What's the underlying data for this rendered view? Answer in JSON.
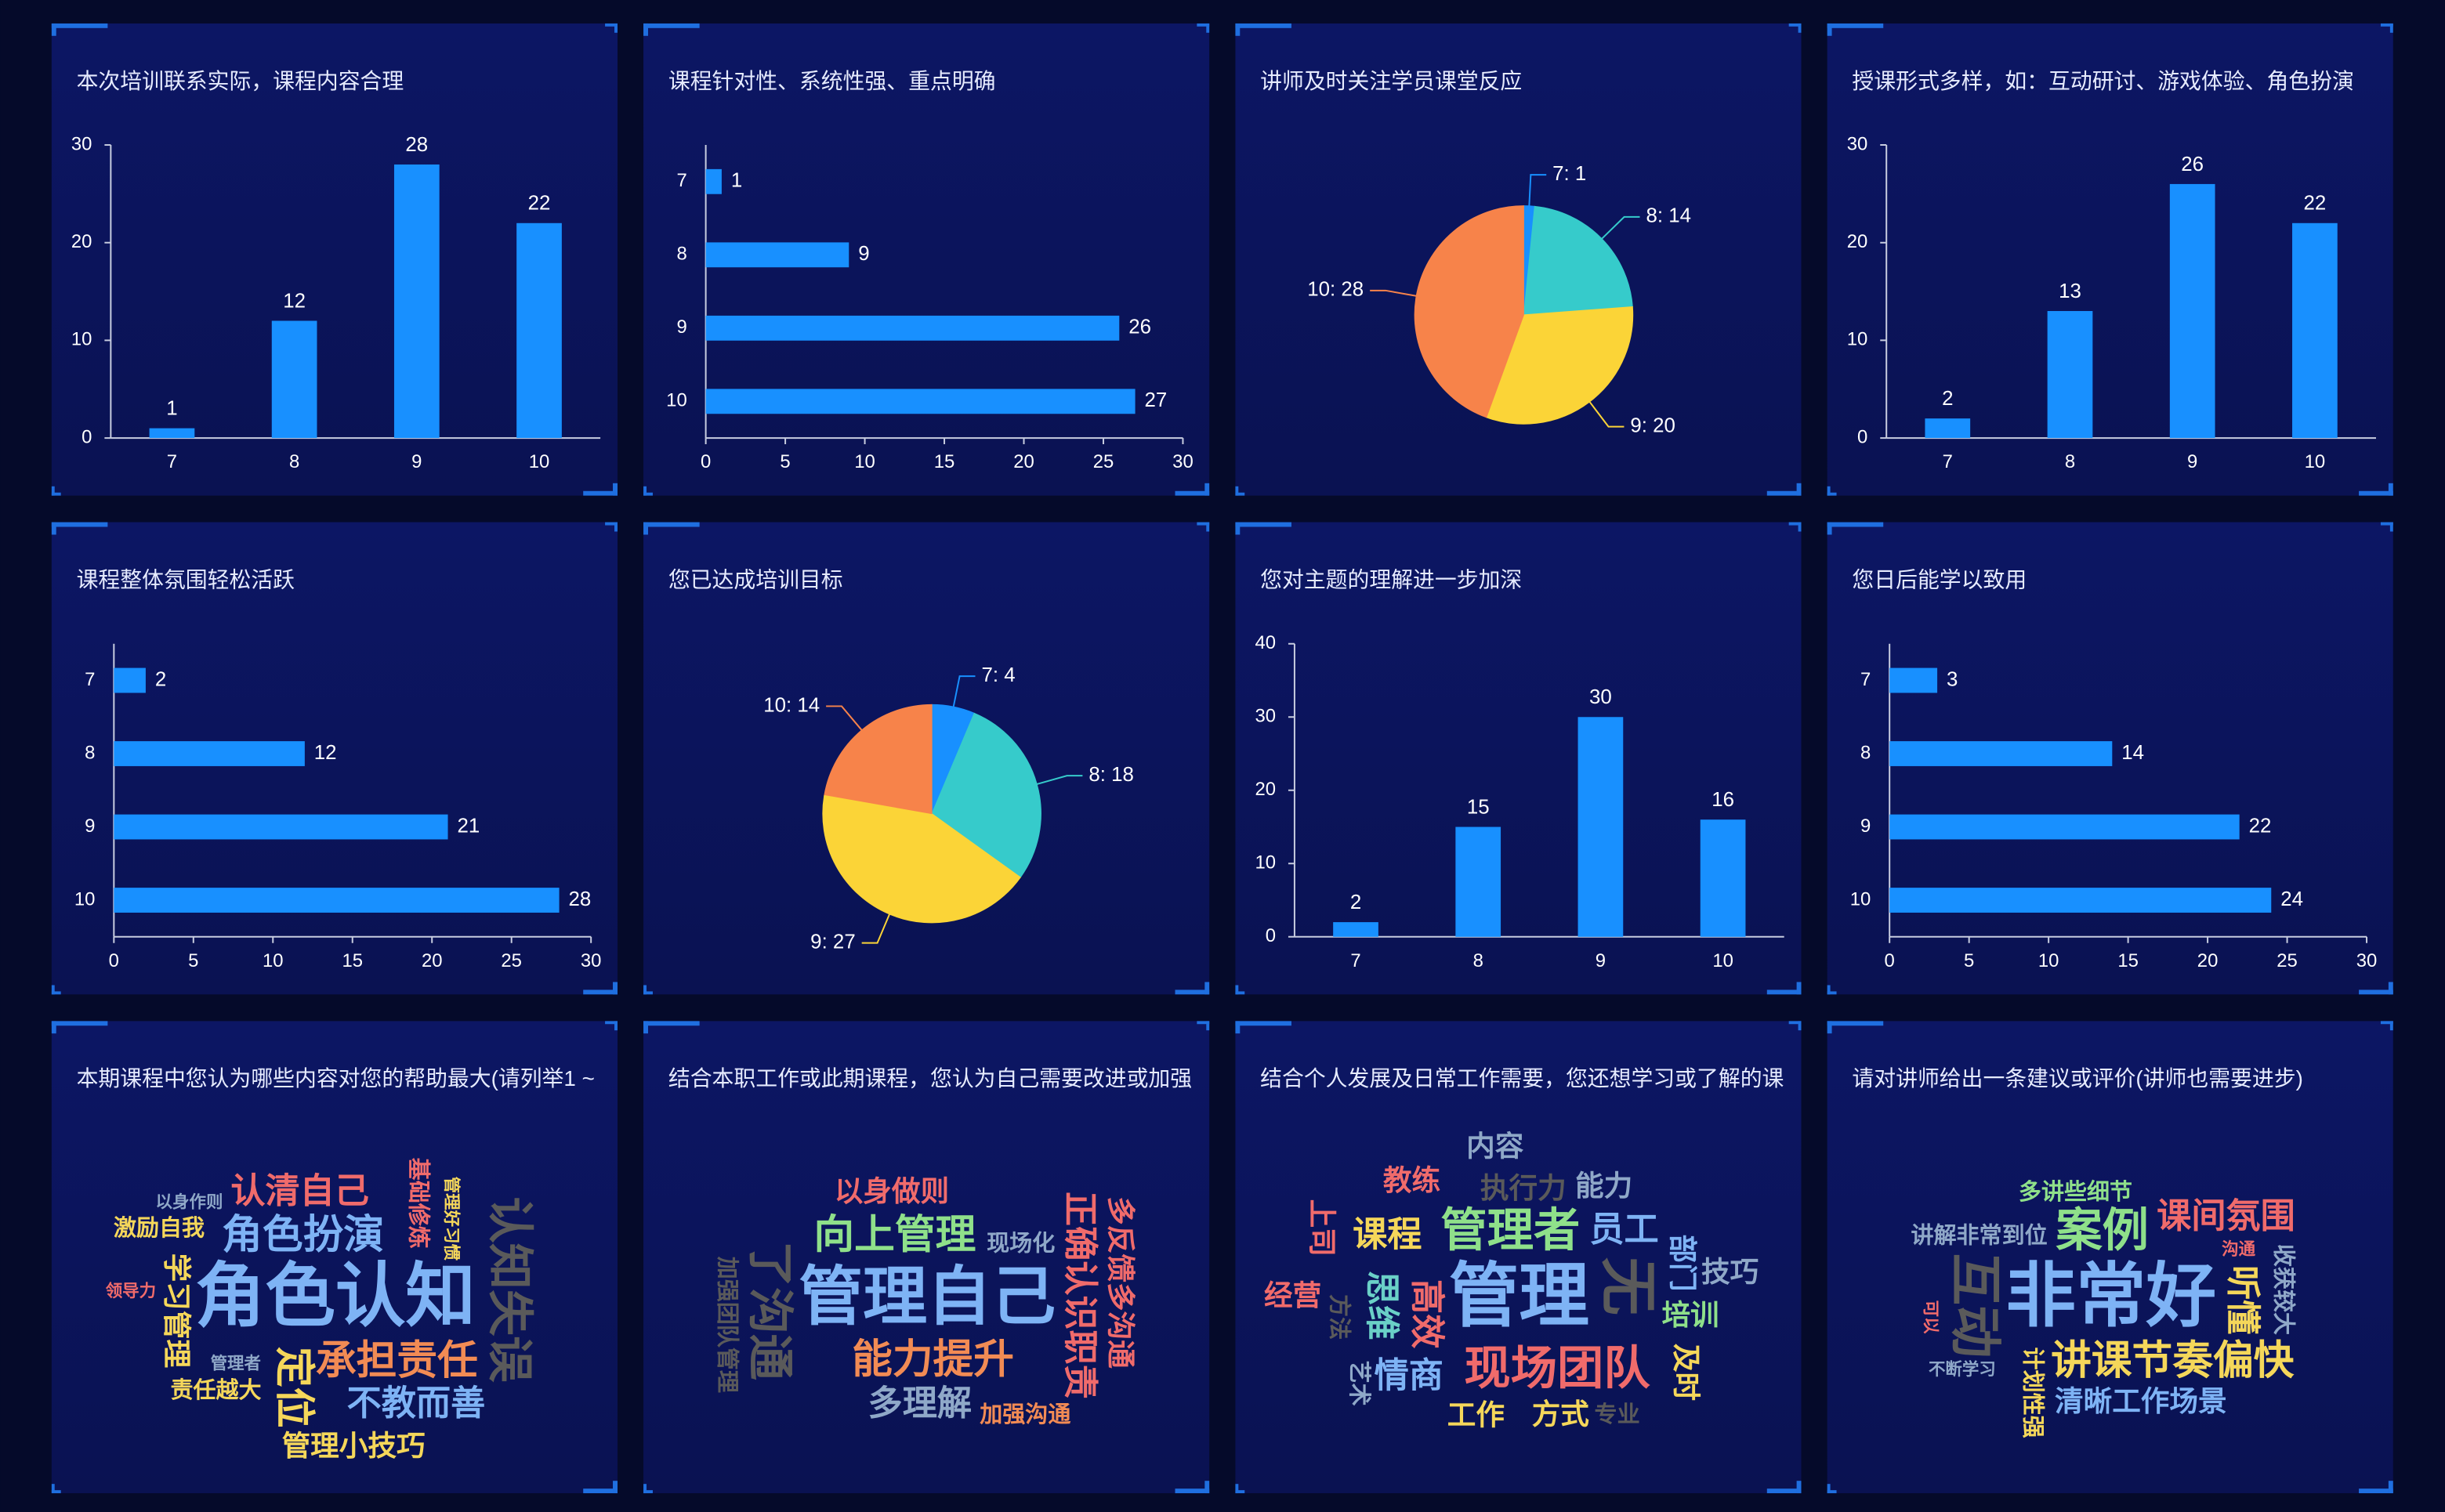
{
  "chart_data": [
    {
      "type": "bar",
      "title": "本次培训联系实际，课程内容合理",
      "categories": [
        "7",
        "8",
        "9",
        "10"
      ],
      "values": [
        1,
        12,
        28,
        22
      ],
      "color": "#1890ff",
      "ylim": [
        0,
        30
      ],
      "yticks": [
        0,
        10,
        20,
        30
      ]
    },
    {
      "type": "hbar",
      "title": "课程针对性、系统性强、重点明确",
      "categories": [
        "7",
        "8",
        "9",
        "10"
      ],
      "values": [
        1,
        9,
        26,
        27
      ],
      "color": "#1890ff",
      "xlim": [
        0,
        30
      ],
      "xticks": [
        0,
        5,
        10,
        15,
        20,
        25,
        30
      ]
    },
    {
      "type": "pie",
      "title": "讲师及时关注学员课堂反应",
      "categories": [
        "7",
        "8",
        "9",
        "10"
      ],
      "values": [
        1,
        14,
        20,
        28
      ],
      "value_labels": [
        "7: 1",
        "8: 14",
        "9: 20",
        "10: 28"
      ],
      "colors": [
        "#1890ff",
        "#36cbcb",
        "#fbd437",
        "#f7834a"
      ]
    },
    {
      "type": "bar",
      "title": "授课形式多样，如：互动研讨、游戏体验、角色扮演",
      "categories": [
        "7",
        "8",
        "9",
        "10"
      ],
      "values": [
        2,
        13,
        26,
        22
      ],
      "color": "#1890ff",
      "ylim": [
        0,
        30
      ],
      "yticks": [
        0,
        10,
        20,
        30
      ]
    },
    {
      "type": "hbar",
      "title": "课程整体氛围轻松活跃",
      "categories": [
        "7",
        "8",
        "9",
        "10"
      ],
      "values": [
        2,
        12,
        21,
        28
      ],
      "color": "#1890ff",
      "xlim": [
        0,
        30
      ],
      "xticks": [
        0,
        5,
        10,
        15,
        20,
        25,
        30
      ]
    },
    {
      "type": "pie",
      "title": "您已达成培训目标",
      "categories": [
        "7",
        "8",
        "9",
        "10"
      ],
      "values": [
        4,
        18,
        27,
        14
      ],
      "value_labels": [
        "7: 4",
        "8: 18",
        "9: 27",
        "10: 14"
      ],
      "colors": [
        "#1890ff",
        "#36cbcb",
        "#fbd437",
        "#f7834a"
      ]
    },
    {
      "type": "bar",
      "title": "您对主题的理解进一步加深",
      "categories": [
        "7",
        "8",
        "9",
        "10"
      ],
      "values": [
        2,
        15,
        30,
        16
      ],
      "color": "#1890ff",
      "ylim": [
        0,
        40
      ],
      "yticks": [
        0,
        10,
        20,
        30,
        40
      ]
    },
    {
      "type": "hbar",
      "title": "您日后能学以致用",
      "categories": [
        "7",
        "8",
        "9",
        "10"
      ],
      "values": [
        3,
        14,
        22,
        24
      ],
      "color": "#1890ff",
      "xlim": [
        0,
        30
      ],
      "xticks": [
        0,
        5,
        10,
        15,
        20,
        25,
        30
      ]
    },
    {
      "type": "wordcloud",
      "title": "本期课程中您认为哪些内容对您的帮助最大(请列举1 ~",
      "categories": [
        "角色认知",
        "认知失误",
        "角色扮演",
        "承担责任",
        "定位",
        "认清自己",
        "不教而善",
        "学习管理",
        "管理小技巧",
        "责任越大",
        "基础修炼",
        "激励自我",
        "以身作则",
        "管理好习惯",
        "管理者",
        "领导力"
      ],
      "values": [
        10,
        6,
        5,
        5,
        5,
        4,
        4,
        3,
        3,
        2,
        2,
        2,
        1,
        1,
        1,
        1
      ],
      "colors": [
        "#7eb3f5",
        "#5a5a5a",
        "#7eb3f5",
        "#f28b54",
        "#f5d75a",
        "#f06b6b",
        "#7eb3f5",
        "#f5d75a",
        "#f5d75a",
        "#f5d75a",
        "#f06b6b",
        "#f5d75a",
        "#8fa8c8",
        "#f5d75a",
        "#8fa8c8",
        "#f06b6b"
      ]
    },
    {
      "type": "wordcloud",
      "title": "结合本职工作或此期课程，您认为自己需要改进或加强",
      "categories": [
        "管理自己",
        "了沟通",
        "能力提升",
        "向上管理",
        "正确认识职责",
        "多理解",
        "以身做则",
        "多反馈多沟通",
        "现场化",
        "加强沟通",
        "加强团队管理"
      ],
      "values": [
        9,
        6,
        5,
        5,
        4,
        4,
        3,
        3,
        2,
        2,
        2
      ],
      "colors": [
        "#7eb3f5",
        "#5a5a5a",
        "#f28b54",
        "#8fe08a",
        "#f06b6b",
        "#8fa8c8",
        "#f06b6b",
        "#f06b6b",
        "#8fa8c8",
        "#f28b54",
        "#5a5a5a"
      ]
    },
    {
      "type": "wordcloud",
      "title": "结合个人发展及日常工作需要，您还想学习或了解的课",
      "categories": [
        "管理",
        "无",
        "现场团队",
        "管理者",
        "高效",
        "员工",
        "情商",
        "思维",
        "课程",
        "执行力",
        "部门",
        "培训",
        "方式",
        "方法",
        "工作",
        "能力",
        "及时",
        "教练",
        "专业",
        "艺术",
        "技巧",
        "经营",
        "上司",
        "内容"
      ],
      "values": [
        10,
        8,
        6,
        6,
        4,
        4,
        4,
        4,
        4,
        3,
        3,
        3,
        3,
        2,
        3,
        3,
        3,
        3,
        2,
        2,
        3,
        3,
        3,
        3
      ],
      "colors": [
        "#7eb3f5",
        "#5a5a5a",
        "#f06b6b",
        "#8fe08a",
        "#f06b6b",
        "#7eb3f5",
        "#7eb3f5",
        "#6ad0c7",
        "#f5d75a",
        "#5a5a5a",
        "#7eb3f5",
        "#8fe08a",
        "#f5d75a",
        "#5a5a5a",
        "#f5d75a",
        "#8fa8c8",
        "#f5d75a",
        "#f06b6b",
        "#5a5a5a",
        "#8fa8c8",
        "#8fa8c8",
        "#f06b6b",
        "#f06b6b",
        "#8fa8c8"
      ]
    },
    {
      "type": "wordcloud",
      "title": "请对讲师给出一条建议或评价(讲师也需要进步)",
      "categories": [
        "非常好",
        "互动",
        "案例",
        "讲课节奏偏快",
        "听懂",
        "课间氛围",
        "清晰工作场景",
        "计划性强",
        "讲解非常到位",
        "多讲些细节",
        "收获较大",
        "不断学习",
        "沟通",
        "可以"
      ],
      "values": [
        10,
        7,
        6,
        5,
        4,
        4,
        3,
        2,
        2,
        2,
        2,
        1,
        1,
        1
      ],
      "colors": [
        "#7eb3f5",
        "#5a5a5a",
        "#8fe08a",
        "#f5d75a",
        "#f5d75a",
        "#f06b6b",
        "#7eb3f5",
        "#f5d75a",
        "#8fa8c8",
        "#8fe08a",
        "#8fa8c8",
        "#8fa8c8",
        "#f06b6b",
        "#f06b6b"
      ]
    }
  ]
}
